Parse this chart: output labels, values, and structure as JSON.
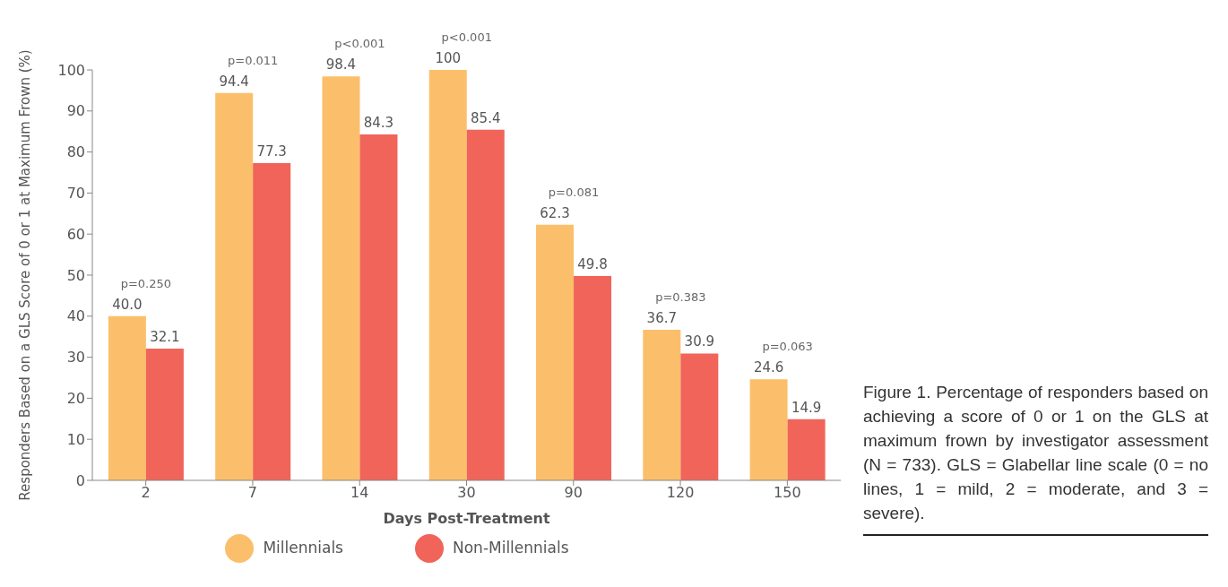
{
  "chart_data": {
    "type": "bar",
    "xlabel": "Days Post-Treatment",
    "ylabel": "Responders Based on a GLS Score of 0 or 1 at Maximum Frown (%)",
    "categories": [
      "2",
      "7",
      "14",
      "30",
      "90",
      "120",
      "150"
    ],
    "series": [
      {
        "name": "Millennials",
        "color": "#fbbf6b",
        "values": [
          40.0,
          94.4,
          98.4,
          100,
          62.3,
          36.7,
          24.6
        ],
        "value_labels": [
          "40.0",
          "94.4",
          "98.4",
          "100",
          "62.3",
          "36.7",
          "24.6"
        ]
      },
      {
        "name": "Non-Millennials",
        "color": "#f06459",
        "values": [
          32.1,
          77.3,
          84.3,
          85.4,
          49.8,
          30.9,
          14.9
        ],
        "value_labels": [
          "32.1",
          "77.3",
          "84.3",
          "85.4",
          "49.8",
          "30.9",
          "14.9"
        ]
      }
    ],
    "ylim": [
      0,
      100
    ],
    "yticks": [
      0,
      10,
      20,
      30,
      40,
      50,
      60,
      70,
      80,
      90,
      100
    ],
    "grid": false,
    "legend": "bottom",
    "annotations": [
      "p=0.250",
      "p=0.011",
      "p<0.001",
      "p<0.001",
      "p=0.081",
      "p=0.383",
      "p=0.063",
      "Figure 1. Percentage of responders based on achieving a score of 0 or 1 on the GLS at maximum frown by investigator assessment (N = 733). GLS = Glabellar line scale (0 = no lines, 1 = mild, 2 = moderate, and 3 = severe)."
    ]
  }
}
